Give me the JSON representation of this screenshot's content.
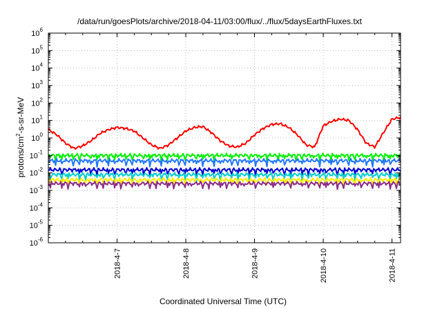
{
  "chart_data": {
    "type": "line",
    "title": "/data/run/goesPlots/archive/2018-04-11/03:00/flux/../flux/5daysEarthFluxes.txt",
    "xlabel": "Coordinated Universal Time (UTC)",
    "ylabel": {
      "base": "protons/cm",
      "sup": "2",
      "rest": "-s-sr-MeV"
    },
    "yscale": "log",
    "ylim_exp": [
      -6,
      6
    ],
    "y_ticks": [
      {
        "base": "10",
        "exp": "6",
        "value": 1000000.0
      },
      {
        "base": "10",
        "exp": "5",
        "value": 100000.0
      },
      {
        "base": "10",
        "exp": "4",
        "value": 10000.0
      },
      {
        "base": "10",
        "exp": "3",
        "value": 1000.0
      },
      {
        "base": "10",
        "exp": "2",
        "value": 100.0
      },
      {
        "base": "10",
        "exp": "1",
        "value": 10.0
      },
      {
        "base": "10",
        "exp": "0",
        "value": 1.0
      },
      {
        "base": "10",
        "exp": "-1",
        "value": 0.1
      },
      {
        "base": "10",
        "exp": "-2",
        "value": 0.01
      },
      {
        "base": "10",
        "exp": "-3",
        "value": 0.001
      },
      {
        "base": "10",
        "exp": "-4",
        "value": 0.0001
      },
      {
        "base": "10",
        "exp": "-5",
        "value": 1e-05
      },
      {
        "base": "10",
        "exp": "-6",
        "value": 1e-06
      }
    ],
    "xlim": [
      "2018-04-06 00:00",
      "2018-04-11 03:00"
    ],
    "x_ticks": [
      {
        "label": "2018-4-7",
        "value": "2018-04-07"
      },
      {
        "label": "2018-4-8",
        "value": "2018-04-08"
      },
      {
        "label": "2018-4-9",
        "value": "2018-04-09"
      },
      {
        "label": "2018-4-10",
        "value": "2018-04-10"
      },
      {
        "label": "2018-4-11",
        "value": "2018-04-11"
      }
    ],
    "grid": true,
    "legend": false,
    "series": [
      {
        "color": "#ff0000",
        "x": [
          "2018-04-06 00:00",
          "2018-04-06 03:00",
          "2018-04-06 06:00",
          "2018-04-06 09:00",
          "2018-04-06 12:00",
          "2018-04-06 15:00",
          "2018-04-06 18:00",
          "2018-04-06 21:00",
          "2018-04-07 00:00",
          "2018-04-07 03:00",
          "2018-04-07 06:00",
          "2018-04-07 09:00",
          "2018-04-07 12:00",
          "2018-04-07 15:00",
          "2018-04-07 18:00",
          "2018-04-07 21:00",
          "2018-04-08 00:00",
          "2018-04-08 03:00",
          "2018-04-08 06:00",
          "2018-04-08 09:00",
          "2018-04-08 12:00",
          "2018-04-08 15:00",
          "2018-04-08 18:00",
          "2018-04-08 21:00",
          "2018-04-09 00:00",
          "2018-04-09 03:00",
          "2018-04-09 06:00",
          "2018-04-09 09:00",
          "2018-04-09 12:00",
          "2018-04-09 15:00",
          "2018-04-09 18:00",
          "2018-04-09 21:00",
          "2018-04-10 00:00",
          "2018-04-10 03:00",
          "2018-04-10 06:00",
          "2018-04-10 09:00",
          "2018-04-10 12:00",
          "2018-04-10 15:00",
          "2018-04-10 18:00",
          "2018-04-10 21:00",
          "2018-04-11 00:00",
          "2018-04-11 03:00"
        ],
        "values": [
          3.0,
          1.5,
          0.5,
          0.25,
          0.35,
          0.7,
          1.8,
          3.0,
          4.0,
          3.5,
          2.5,
          1.0,
          0.4,
          0.25,
          0.4,
          1.0,
          2.5,
          4.0,
          4.5,
          2.0,
          0.7,
          0.35,
          0.3,
          0.5,
          1.5,
          3.5,
          6.0,
          6.5,
          4.0,
          1.5,
          0.4,
          0.3,
          5.0,
          9.0,
          12.0,
          10.0,
          3.0,
          0.5,
          0.3,
          2.0,
          12.0,
          15.0
        ]
      },
      {
        "color": "#00ee00",
        "x": [
          "2018-04-06 00:00",
          "2018-04-07 00:00",
          "2018-04-08 00:00",
          "2018-04-09 00:00",
          "2018-04-10 00:00",
          "2018-04-11 03:00"
        ],
        "values": [
          0.1,
          0.1,
          0.1,
          0.1,
          0.1,
          0.1
        ]
      },
      {
        "color": "#2277ff",
        "x": [
          "2018-04-06 00:00",
          "2018-04-07 00:00",
          "2018-04-08 00:00",
          "2018-04-09 00:00",
          "2018-04-10 00:00",
          "2018-04-11 03:00"
        ],
        "values": [
          0.05,
          0.05,
          0.05,
          0.05,
          0.05,
          0.05
        ]
      },
      {
        "color": "#0000cc",
        "x": [
          "2018-04-06 00:00",
          "2018-04-07 00:00",
          "2018-04-08 00:00",
          "2018-04-09 00:00",
          "2018-04-10 00:00",
          "2018-04-11 03:00"
        ],
        "values": [
          0.015,
          0.015,
          0.015,
          0.015,
          0.015,
          0.015
        ]
      },
      {
        "color": "#00cccc",
        "x": [
          "2018-04-06 00:00",
          "2018-04-07 00:00",
          "2018-04-08 00:00",
          "2018-04-09 00:00",
          "2018-04-10 00:00",
          "2018-04-11 03:00"
        ],
        "values": [
          0.008,
          0.008,
          0.008,
          0.008,
          0.008,
          0.008
        ]
      },
      {
        "color": "#ffee00",
        "x": [
          "2018-04-06 00:00",
          "2018-04-07 00:00",
          "2018-04-08 00:00",
          "2018-04-09 00:00",
          "2018-04-10 00:00",
          "2018-04-11 03:00"
        ],
        "values": [
          0.004,
          0.004,
          0.004,
          0.004,
          0.004,
          0.004
        ]
      },
      {
        "color": "#8b2d8b",
        "x": [
          "2018-04-06 00:00",
          "2018-04-07 00:00",
          "2018-04-08 00:00",
          "2018-04-09 00:00",
          "2018-04-10 00:00",
          "2018-04-11 03:00"
        ],
        "values": [
          0.0025,
          0.0025,
          0.0025,
          0.0025,
          0.0025,
          0.0025
        ]
      }
    ]
  }
}
